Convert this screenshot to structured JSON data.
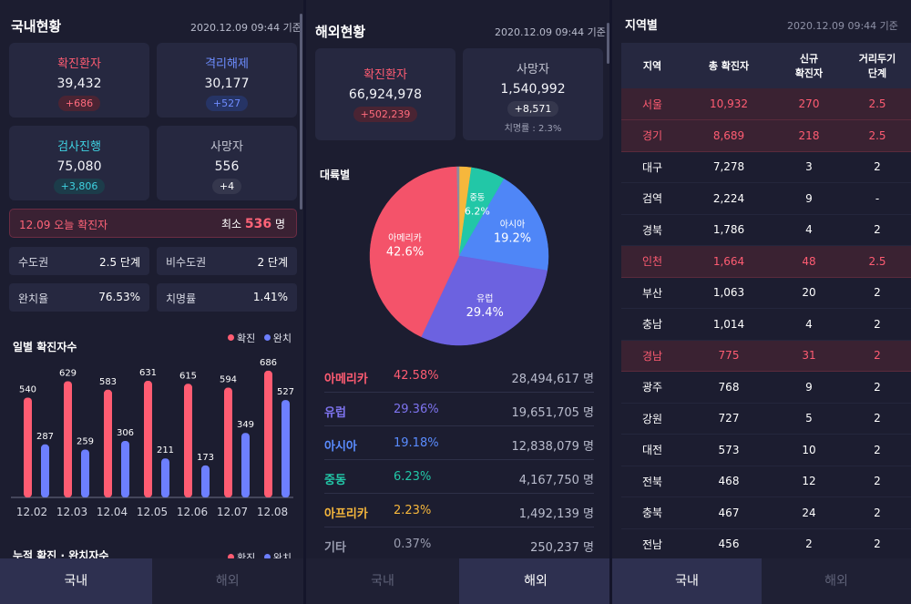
{
  "domestic": {
    "title": "국내현황",
    "date": "2020.12.09 09:44 기준",
    "cards": [
      {
        "label": "확진환자",
        "value": "39,432",
        "delta": "+686",
        "color": "red"
      },
      {
        "label": "격리해제",
        "value": "30,177",
        "delta": "+527",
        "color": "blue"
      },
      {
        "label": "검사진행",
        "value": "75,080",
        "delta": "+3,806",
        "color": "teal"
      },
      {
        "label": "사망자",
        "value": "556",
        "delta": "+4",
        "color": "gray"
      }
    ],
    "today": {
      "label": "12.09 오늘 확진자",
      "prefix": "최소",
      "value": "536",
      "unit": "명"
    },
    "stats": [
      {
        "key": "수도권",
        "value": "2.5 단계"
      },
      {
        "key": "비수도권",
        "value": "2 단계"
      },
      {
        "key": "완치율",
        "value": "76.53%"
      },
      {
        "key": "치명률",
        "value": "1.41%"
      }
    ],
    "daily_title": "일별 확진자수",
    "cumulative_title": "누적 확진 · 완치자수",
    "legend": {
      "confirmed": "확진",
      "recovered": "완치"
    },
    "chart_data": {
      "type": "bar",
      "categories": [
        "12.02",
        "12.03",
        "12.04",
        "12.05",
        "12.06",
        "12.07",
        "12.08"
      ],
      "series": [
        {
          "name": "확진",
          "values": [
            540,
            629,
            583,
            631,
            615,
            594,
            686
          ],
          "color": "#ff5c72"
        },
        {
          "name": "완치",
          "values": [
            287,
            259,
            306,
            211,
            173,
            349,
            527
          ],
          "color": "#6d7fff"
        }
      ],
      "ylim": [
        0,
        720
      ]
    }
  },
  "overseas": {
    "title": "해외현황",
    "date": "2020.12.09 09:44 기준",
    "confirmed": {
      "label": "확진환자",
      "value": "66,924,978",
      "delta": "+502,239"
    },
    "deaths": {
      "label": "사망자",
      "value": "1,540,992",
      "delta": "+8,571",
      "note": "치명률 : 2.3%"
    },
    "continent_title": "대륙별",
    "chart_data": {
      "type": "pie",
      "slices": [
        {
          "name": "아메리카",
          "value": 42.6,
          "color": "#f4536a"
        },
        {
          "name": "유럽",
          "value": 29.4,
          "color": "#6c62e0"
        },
        {
          "name": "아시아",
          "value": 19.2,
          "color": "#4f86f7"
        },
        {
          "name": "중동",
          "value": 6.2,
          "color": "#22c7a7"
        },
        {
          "name": "아프리카",
          "value": 2.2,
          "color": "#f6b73c"
        },
        {
          "name": "기타",
          "value": 0.4,
          "color": "#8a8da0"
        }
      ],
      "labels": [
        {
          "name": "아메리카",
          "pct": "42.6%"
        },
        {
          "name": "유럽",
          "pct": "29.4%"
        },
        {
          "name": "아시아",
          "pct": "19.2%"
        },
        {
          "name": "중동",
          "pct": "6.2%"
        }
      ]
    },
    "continents": [
      {
        "name": "아메리카",
        "pct": "42.58%",
        "count": "28,494,617 명",
        "color": "#ff5c72"
      },
      {
        "name": "유럽",
        "pct": "29.36%",
        "count": "19,651,705 명",
        "color": "#7e74ef"
      },
      {
        "name": "아시아",
        "pct": "19.18%",
        "count": "12,838,079 명",
        "color": "#5a8cff"
      },
      {
        "name": "중동",
        "pct": "6.23%",
        "count": "4,167,750 명",
        "color": "#22c7a7"
      },
      {
        "name": "아프리카",
        "pct": "2.23%",
        "count": "1,492,139 명",
        "color": "#f6b73c"
      },
      {
        "name": "기타",
        "pct": "0.37%",
        "count": "250,237 명",
        "color": "#9a9db0"
      }
    ]
  },
  "regions": {
    "title": "지역별",
    "date": "2020.12.09 09:44 기준",
    "headers": [
      "지역",
      "총 확진자",
      "신규\n확진자",
      "거리두기\n단계"
    ],
    "rows": [
      {
        "name": "서울",
        "total": "10,932",
        "new": "270",
        "level": "2.5",
        "hl": true
      },
      {
        "name": "경기",
        "total": "8,689",
        "new": "218",
        "level": "2.5",
        "hl": true
      },
      {
        "name": "대구",
        "total": "7,278",
        "new": "3",
        "level": "2",
        "hl": false
      },
      {
        "name": "검역",
        "total": "2,224",
        "new": "9",
        "level": "-",
        "hl": false
      },
      {
        "name": "경북",
        "total": "1,786",
        "new": "4",
        "level": "2",
        "hl": false
      },
      {
        "name": "인천",
        "total": "1,664",
        "new": "48",
        "level": "2.5",
        "hl": true
      },
      {
        "name": "부산",
        "total": "1,063",
        "new": "20",
        "level": "2",
        "hl": false
      },
      {
        "name": "충남",
        "total": "1,014",
        "new": "4",
        "level": "2",
        "hl": false
      },
      {
        "name": "경남",
        "total": "775",
        "new": "31",
        "level": "2",
        "hl": true
      },
      {
        "name": "광주",
        "total": "768",
        "new": "9",
        "level": "2",
        "hl": false
      },
      {
        "name": "강원",
        "total": "727",
        "new": "5",
        "level": "2",
        "hl": false
      },
      {
        "name": "대전",
        "total": "573",
        "new": "10",
        "level": "2",
        "hl": false
      },
      {
        "name": "전북",
        "total": "468",
        "new": "12",
        "level": "2",
        "hl": false
      },
      {
        "name": "충북",
        "total": "467",
        "new": "24",
        "level": "2",
        "hl": false
      },
      {
        "name": "전남",
        "total": "456",
        "new": "2",
        "level": "2",
        "hl": false
      }
    ]
  },
  "tabs": {
    "domestic": "국내",
    "overseas": "해외"
  }
}
